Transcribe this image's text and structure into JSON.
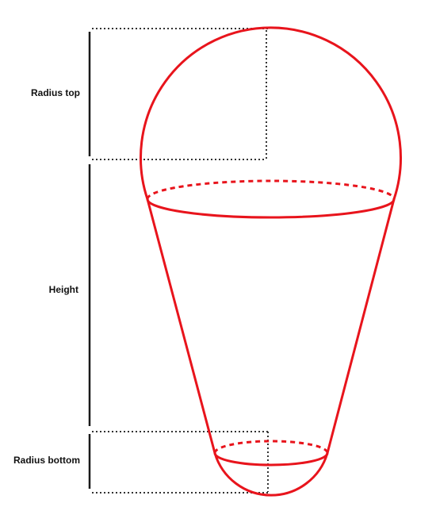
{
  "labels": {
    "radius_top": "Radius top",
    "height": "Height",
    "radius_bottom": "Radius bottom"
  },
  "colors": {
    "shape": "#e8141c",
    "dimension_lines": "#1a1a1a",
    "guides": "#333333",
    "background": "#ffffff"
  }
}
